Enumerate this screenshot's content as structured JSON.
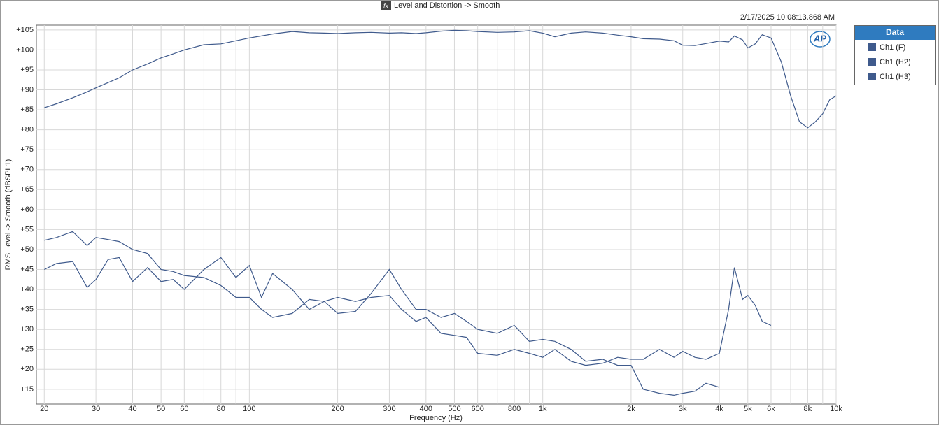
{
  "chart_data": {
    "type": "line",
    "title": "Level and Distortion -> Smooth",
    "timestamp": "2/17/2025 10:08:13.868 AM",
    "logo": "AP",
    "ylabel": "RMS Level -> Smooth (dBSPL1)",
    "xlabel": "Frequency (Hz)",
    "legend_title": "Data",
    "legend": "right",
    "grid": true,
    "xscale": "log",
    "xlim": [
      18.8,
      10000
    ],
    "ylim": [
      11.3,
      106.2
    ],
    "xticks": [
      20,
      30,
      40,
      50,
      60,
      80,
      100,
      200,
      300,
      400,
      500,
      600,
      800,
      {
        "value": 1000,
        "label": "1k"
      },
      {
        "value": 2000,
        "label": "2k"
      },
      {
        "value": 3000,
        "label": "3k"
      },
      {
        "value": 4000,
        "label": "4k"
      },
      {
        "value": 5000,
        "label": "5k"
      },
      {
        "value": 6000,
        "label": "6k"
      },
      {
        "value": 8000,
        "label": "8k"
      },
      {
        "value": 10000,
        "label": "10k"
      }
    ],
    "xminor": [
      70,
      90,
      700,
      900,
      7000,
      9000
    ],
    "yticks": [
      {
        "value": 15,
        "label": "+15"
      },
      {
        "value": 20,
        "label": "+20"
      },
      {
        "value": 25,
        "label": "+25"
      },
      {
        "value": 30,
        "label": "+30"
      },
      {
        "value": 35,
        "label": "+35"
      },
      {
        "value": 40,
        "label": "+40"
      },
      {
        "value": 45,
        "label": "+45"
      },
      {
        "value": 50,
        "label": "+50"
      },
      {
        "value": 55,
        "label": "+55"
      },
      {
        "value": 60,
        "label": "+60"
      },
      {
        "value": 65,
        "label": "+65"
      },
      {
        "value": 70,
        "label": "+70"
      },
      {
        "value": 75,
        "label": "+75"
      },
      {
        "value": 80,
        "label": "+80"
      },
      {
        "value": 85,
        "label": "+85"
      },
      {
        "value": 90,
        "label": "+90"
      },
      {
        "value": 95,
        "label": "+95"
      },
      {
        "value": 100,
        "label": "+100"
      },
      {
        "value": 105,
        "label": "+105"
      }
    ],
    "x": [
      20,
      22,
      25,
      28,
      30,
      33,
      36,
      40,
      45,
      50,
      55,
      60,
      70,
      80,
      90,
      100,
      110,
      120,
      140,
      160,
      180,
      200,
      230,
      260,
      300,
      330,
      370,
      400,
      450,
      500,
      550,
      600,
      700,
      800,
      900,
      1000,
      1100,
      1250,
      1400,
      1600,
      1800,
      2000,
      2200,
      2500,
      2800,
      3000,
      3300,
      3600,
      4000,
      4300,
      4500,
      4800,
      5000,
      5300,
      5600,
      6000,
      6500,
      7000,
      7500,
      8000,
      8500,
      9000,
      9500,
      10000
    ],
    "series": [
      {
        "name": "Ch1 (F)",
        "color": "#3f5a8c",
        "values": [
          85.5,
          86.5,
          88,
          89.5,
          90.5,
          91.8,
          93,
          95,
          96.5,
          98,
          99,
          100,
          101.3,
          101.5,
          102.3,
          103,
          103.5,
          104,
          104.6,
          104.3,
          104.2,
          104.1,
          104.3,
          104.4,
          104.2,
          104.3,
          104.1,
          104.3,
          104.7,
          104.9,
          104.8,
          104.6,
          104.4,
          104.5,
          104.8,
          104.2,
          103.3,
          104.2,
          104.5,
          104.2,
          103.7,
          103.3,
          102.8,
          102.7,
          102.3,
          101.2,
          101.1,
          101.6,
          102.2,
          102,
          103.5,
          102.5,
          100.5,
          101.5,
          103.8,
          103,
          97,
          88.5,
          82,
          80.5,
          82,
          84,
          87.5,
          88.5
        ]
      },
      {
        "name": "Ch1 (H2)",
        "color": "#3f5a8c",
        "values": [
          52.3,
          53,
          54.5,
          51,
          53,
          52.5,
          52,
          50,
          49,
          45,
          44.5,
          43.5,
          43,
          41,
          38,
          38,
          35,
          33,
          34,
          37.5,
          37,
          38,
          37,
          38,
          38.5,
          35,
          32,
          33,
          29,
          28.5,
          28,
          24,
          23.5,
          25,
          24,
          23,
          25,
          22,
          21,
          21.5,
          23,
          22.5,
          22.5,
          25,
          23,
          24.5,
          23,
          22.5,
          24,
          35,
          45.5,
          37.5,
          38.5,
          36,
          32,
          31,
          null,
          null,
          null,
          null,
          null,
          null,
          null,
          null
        ]
      },
      {
        "name": "Ch1 (H3)",
        "color": "#3f5a8c",
        "values": [
          45,
          46.5,
          47,
          40.5,
          42.5,
          47.5,
          48,
          42,
          45.5,
          42,
          42.5,
          40,
          45,
          48,
          43,
          46,
          38,
          44,
          40,
          35,
          37,
          34,
          34.5,
          39,
          45,
          40,
          35,
          35,
          33,
          34,
          32,
          30,
          29,
          31,
          27,
          27.5,
          27,
          25,
          22,
          22.5,
          21,
          21,
          15,
          14,
          13.5,
          14,
          14.5,
          16.5,
          15.5,
          null,
          null,
          null,
          null,
          null,
          null,
          null,
          null,
          null,
          null,
          null,
          null,
          null,
          null,
          null
        ]
      }
    ]
  }
}
